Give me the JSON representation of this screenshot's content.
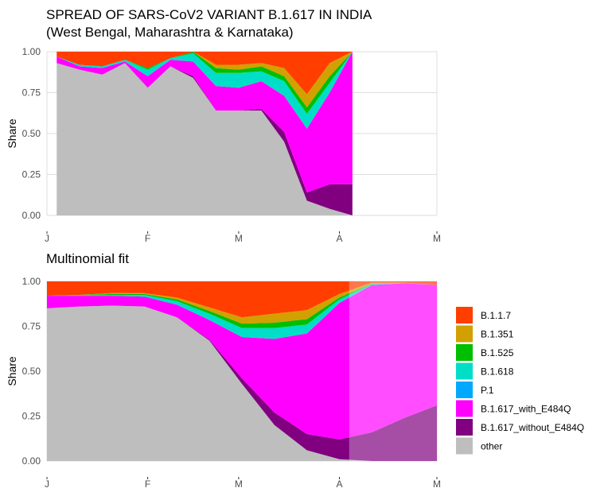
{
  "chart_data": [
    {
      "type": "area",
      "title": "SPREAD OF SARS-CoV2 VARIANT B.1.617 IN INDIA",
      "subtitle": "(West Bengal, Maharashtra & Karnataka)",
      "xlabel": "",
      "ylabel": "Share",
      "stacked": true,
      "x_ticks": [
        "J",
        "F",
        "M",
        "A",
        "M"
      ],
      "x_tick_dates": [
        "2021-01-01",
        "2021-02-01",
        "2021-03-01",
        "2021-04-01",
        "2021-05-01"
      ],
      "y_ticks": [
        "0.00",
        "0.25",
        "0.50",
        "0.75",
        "1.00"
      ],
      "xlim": [
        "2021-01-01",
        "2021-05-01"
      ],
      "ylim": [
        0,
        1
      ],
      "grid": true,
      "x": [
        "2021-01-04",
        "2021-01-11",
        "2021-01-18",
        "2021-01-25",
        "2021-02-01",
        "2021-02-08",
        "2021-02-15",
        "2021-02-22",
        "2021-03-01",
        "2021-03-08",
        "2021-03-15",
        "2021-03-22",
        "2021-03-29",
        "2021-04-05"
      ],
      "series": [
        {
          "name": "other",
          "values": [
            0.93,
            0.89,
            0.86,
            0.93,
            0.78,
            0.91,
            0.84,
            0.64,
            0.64,
            0.64,
            0.45,
            0.09,
            0.04,
            0.0
          ]
        },
        {
          "name": "B.1.617_without_E484Q",
          "values": [
            0,
            0,
            0,
            0,
            0,
            0,
            0.01,
            0.0,
            0.0,
            0.01,
            0.06,
            0.05,
            0.15,
            0.19
          ]
        },
        {
          "name": "B.1.617_with_E484Q",
          "values": [
            0.04,
            0.02,
            0.04,
            0.01,
            0.07,
            0.04,
            0.09,
            0.15,
            0.14,
            0.17,
            0.22,
            0.39,
            0.56,
            0.81
          ]
        },
        {
          "name": "P.1",
          "values": [
            0,
            0,
            0,
            0,
            0,
            0,
            0,
            0,
            0,
            0,
            0,
            0,
            0,
            0
          ]
        },
        {
          "name": "B.1.618",
          "values": [
            0,
            0.01,
            0.01,
            0.01,
            0.04,
            0.01,
            0.05,
            0.08,
            0.09,
            0.06,
            0.09,
            0.09,
            0.06,
            0.0
          ]
        },
        {
          "name": "B.1.525",
          "values": [
            0,
            0,
            0,
            0,
            0.01,
            0,
            0.01,
            0.03,
            0.02,
            0.03,
            0.03,
            0.04,
            0.04,
            0.0
          ]
        },
        {
          "name": "B.1.351",
          "values": [
            0,
            0,
            0,
            0,
            0,
            0,
            0,
            0.02,
            0.03,
            0.02,
            0.05,
            0.08,
            0.08,
            0.0
          ]
        },
        {
          "name": "B.1.1.7",
          "values": [
            0.03,
            0.08,
            0.09,
            0.05,
            0.1,
            0.04,
            0.0,
            0.08,
            0.08,
            0.07,
            0.1,
            0.26,
            0.07,
            0.0
          ]
        }
      ]
    },
    {
      "type": "area",
      "title": "Multinomial fit",
      "xlabel": "",
      "ylabel": "Share",
      "stacked": true,
      "x_ticks": [
        "J",
        "F",
        "M",
        "A",
        "M"
      ],
      "x_tick_dates": [
        "2021-01-01",
        "2021-02-01",
        "2021-03-01",
        "2021-04-01",
        "2021-05-01"
      ],
      "y_ticks": [
        "0.00",
        "0.25",
        "0.50",
        "0.75",
        "1.00"
      ],
      "xlim": [
        "2021-01-01",
        "2021-05-01"
      ],
      "ylim": [
        0,
        1
      ],
      "grid": true,
      "fit_end_date": "2021-04-04",
      "x": [
        "2021-01-01",
        "2021-01-11",
        "2021-01-21",
        "2021-01-31",
        "2021-02-10",
        "2021-02-20",
        "2021-03-02",
        "2021-03-12",
        "2021-03-22",
        "2021-04-01",
        "2021-04-11",
        "2021-04-21",
        "2021-05-01"
      ],
      "series": [
        {
          "name": "other",
          "values": [
            0.85,
            0.86,
            0.865,
            0.86,
            0.8,
            0.67,
            0.43,
            0.2,
            0.06,
            0.01,
            0.0,
            0.0,
            0.0
          ]
        },
        {
          "name": "B.1.617_without_E484Q",
          "values": [
            0,
            0,
            0,
            0,
            0,
            0.005,
            0.03,
            0.07,
            0.09,
            0.11,
            0.16,
            0.24,
            0.31
          ]
        },
        {
          "name": "B.1.617_with_E484Q",
          "values": [
            0.07,
            0.06,
            0.055,
            0.055,
            0.07,
            0.11,
            0.23,
            0.41,
            0.56,
            0.76,
            0.82,
            0.75,
            0.67
          ]
        },
        {
          "name": "P.1",
          "values": [
            0,
            0,
            0,
            0,
            0,
            0,
            0,
            0,
            0,
            0,
            0,
            0,
            0
          ]
        },
        {
          "name": "B.1.618",
          "values": [
            0.0,
            0.005,
            0.005,
            0.01,
            0.02,
            0.035,
            0.05,
            0.06,
            0.05,
            0.02,
            0.005,
            0.0,
            0.0
          ]
        },
        {
          "name": "B.1.525",
          "values": [
            0.0,
            0.0,
            0.005,
            0.005,
            0.01,
            0.015,
            0.025,
            0.03,
            0.03,
            0.01,
            0.003,
            0.0,
            0.0
          ]
        },
        {
          "name": "B.1.351",
          "values": [
            0.0,
            0.0,
            0.005,
            0.005,
            0.01,
            0.02,
            0.035,
            0.05,
            0.05,
            0.02,
            0.005,
            0.002,
            0.0
          ]
        },
        {
          "name": "B.1.1.7",
          "values": [
            0.08,
            0.075,
            0.065,
            0.065,
            0.09,
            0.145,
            0.2,
            0.18,
            0.16,
            0.07,
            0.007,
            0.008,
            0.02
          ]
        }
      ]
    }
  ],
  "legend": {
    "position": "right",
    "items": [
      {
        "label": "B.1.1.7",
        "color": "#FF3E00"
      },
      {
        "label": "B.1.351",
        "color": "#D2A000"
      },
      {
        "label": "B.1.525",
        "color": "#00BE00"
      },
      {
        "label": "B.1.618",
        "color": "#00DEC8"
      },
      {
        "label": "P.1",
        "color": "#00A8FF"
      },
      {
        "label": "B.1.617_with_E484Q",
        "color": "#FF00FF"
      },
      {
        "label": "B.1.617_without_E484Q",
        "color": "#800080"
      },
      {
        "label": "other",
        "color": "#BEBEBE"
      }
    ]
  }
}
